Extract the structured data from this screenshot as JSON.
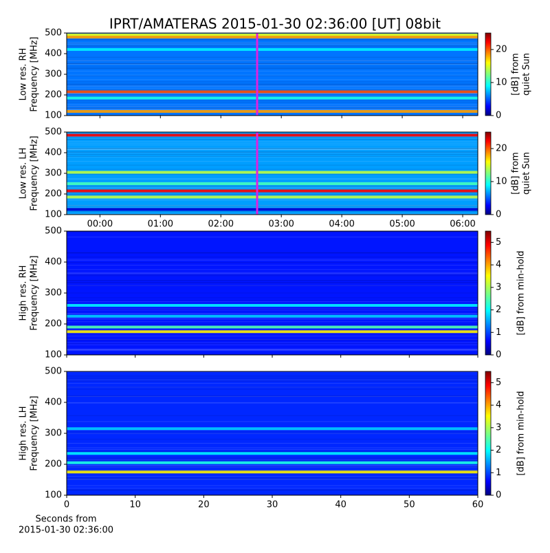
{
  "title": "IPRT/AMATERAS 2015-01-30 02:36:00 [UT]   08bit",
  "chart_data": [
    {
      "type": "heatmap",
      "colormap": "jet",
      "ylabel": [
        "Low res. RH",
        "Frequency [MHz]"
      ],
      "ylim": [
        100,
        500
      ],
      "yticks": [
        100,
        200,
        300,
        400,
        500
      ],
      "xlim": [
        -0.55,
        6.25
      ],
      "marker_x": 2.6,
      "marker_color": "#e020e0",
      "clim": [
        0,
        25
      ],
      "cticks": [
        0,
        10,
        20
      ],
      "clabel": [
        "[dB] from",
        "quiet Sun"
      ],
      "background_level": 6,
      "bands": [
        {
          "freq": 490,
          "level": 15
        },
        {
          "freq": 480,
          "level": 18
        },
        {
          "freq": 420,
          "level": 9
        },
        {
          "freq": 215,
          "level": 20
        },
        {
          "freq": 185,
          "level": 10
        },
        {
          "freq": 120,
          "level": 18
        }
      ]
    },
    {
      "type": "heatmap",
      "colormap": "jet",
      "ylabel": [
        "Low res. LH",
        "Frequency [MHz]"
      ],
      "ylim": [
        100,
        500
      ],
      "yticks": [
        100,
        200,
        300,
        400,
        500
      ],
      "xlim": [
        -0.55,
        6.25
      ],
      "xticks": [
        {
          "value": 0,
          "label": "00:00"
        },
        {
          "value": 1,
          "label": "01:00"
        },
        {
          "value": 2,
          "label": "02:00"
        },
        {
          "value": 3,
          "label": "03:00"
        },
        {
          "value": 4,
          "label": "04:00"
        },
        {
          "value": 5,
          "label": "05:00"
        },
        {
          "value": 6,
          "label": "06:00"
        }
      ],
      "marker_x": 2.6,
      "marker_color": "#e020e0",
      "clim": [
        0,
        25
      ],
      "cticks": [
        0,
        10,
        20
      ],
      "clabel": [
        "[dB] from",
        "quiet Sun"
      ],
      "background_level": 7,
      "bands": [
        {
          "freq": 485,
          "level": 22
        },
        {
          "freq": 305,
          "level": 14
        },
        {
          "freq": 250,
          "level": 11
        },
        {
          "freq": 215,
          "level": 22
        },
        {
          "freq": 185,
          "level": 14
        },
        {
          "freq": 125,
          "level": 2
        }
      ]
    },
    {
      "type": "heatmap",
      "colormap": "jet",
      "ylabel": [
        "High res. RH",
        "Frequency [MHz]"
      ],
      "ylim": [
        100,
        500
      ],
      "yticks": [
        100,
        200,
        300,
        400,
        500
      ],
      "xlim": [
        0,
        60
      ],
      "clim": [
        0,
        5.5
      ],
      "cticks": [
        0,
        1,
        2,
        3,
        4,
        5
      ],
      "clabel": [
        "[dB] from min-hold"
      ],
      "background_level": 0.8,
      "bands": [
        {
          "freq": 260,
          "level": 2
        },
        {
          "freq": 225,
          "level": 1.8
        },
        {
          "freq": 190,
          "level": 2.5
        },
        {
          "freq": 175,
          "level": 3.5
        }
      ]
    },
    {
      "type": "heatmap",
      "colormap": "jet",
      "ylabel": [
        "High res. LH",
        "Frequency [MHz]"
      ],
      "ylim": [
        100,
        500
      ],
      "yticks": [
        100,
        200,
        300,
        400,
        500
      ],
      "xlim": [
        0,
        60
      ],
      "xticks": [
        0,
        10,
        20,
        30,
        40,
        50,
        60
      ],
      "xlabel": [
        "Seconds from",
        "2015-01-30 02:36:00"
      ],
      "clim": [
        0,
        5.5
      ],
      "cticks": [
        0,
        1,
        2,
        3,
        4,
        5
      ],
      "clabel": [
        "[dB] from min-hold"
      ],
      "background_level": 0.9,
      "bands": [
        {
          "freq": 315,
          "level": 1.8
        },
        {
          "freq": 235,
          "level": 2
        },
        {
          "freq": 205,
          "level": 2.2
        },
        {
          "freq": 175,
          "level": 3.5
        }
      ]
    }
  ]
}
